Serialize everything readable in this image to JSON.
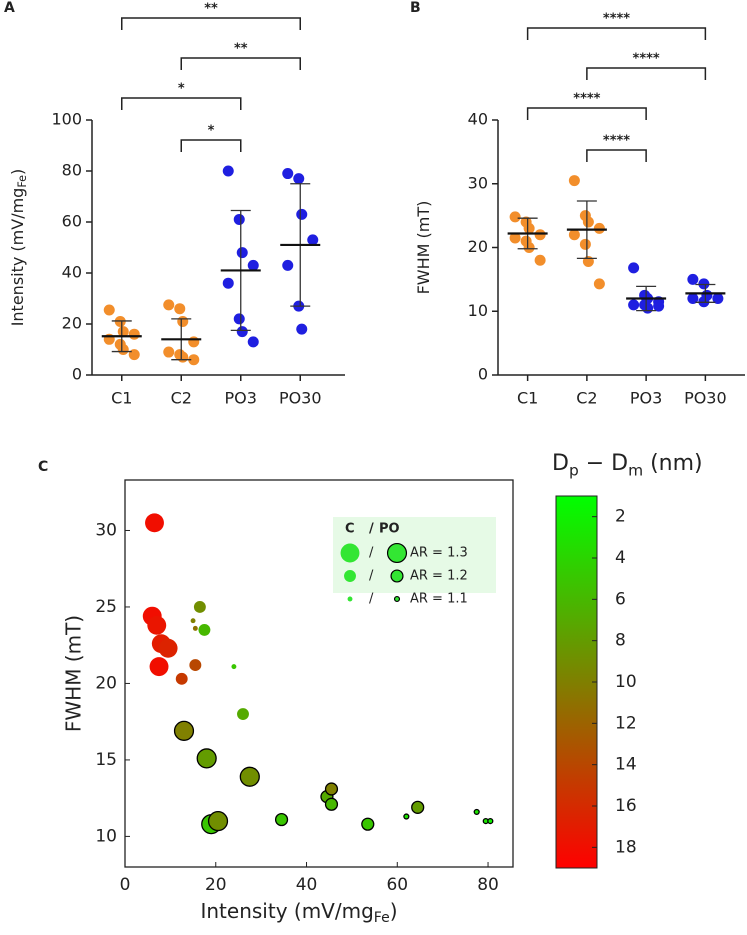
{
  "chart_data": [
    {
      "type": "dot",
      "panel": "A",
      "categories": [
        "C1",
        "C2",
        "PO3",
        "PO30"
      ],
      "colors": [
        "#f28e2b",
        "#f28e2b",
        "#1f1fe0",
        "#1f1fe0"
      ],
      "points": [
        [
          25.5,
          21,
          17,
          16,
          14,
          12,
          10,
          8
        ],
        [
          27.5,
          26,
          21,
          13,
          9,
          8,
          7,
          6
        ],
        [
          80,
          61,
          48,
          43,
          36,
          22,
          17,
          13
        ],
        [
          79,
          77,
          63,
          53,
          43,
          27,
          18
        ]
      ],
      "mean": [
        15.2,
        14,
        41,
        51
      ],
      "sd": [
        6,
        8,
        23.5,
        24
      ],
      "ylabel": [
        "Intensity (mV/mg",
        "Fe",
        ")"
      ],
      "ylim": [
        0,
        100
      ],
      "yticks": [
        0,
        20,
        40,
        60,
        80,
        100
      ],
      "brackets": [
        {
          "from": "C1",
          "to": "PO30",
          "label": "**"
        },
        {
          "from": "C2",
          "to": "PO30",
          "label": "**"
        },
        {
          "from": "C1",
          "to": "PO3",
          "label": "*"
        },
        {
          "from": "C2",
          "to": "PO3",
          "label": "*"
        }
      ]
    },
    {
      "type": "dot",
      "panel": "B",
      "categories": [
        "C1",
        "C2",
        "PO3",
        "PO30"
      ],
      "colors": [
        "#f28e2b",
        "#f28e2b",
        "#1f1fe0",
        "#1f1fe0"
      ],
      "points": [
        [
          24.8,
          24,
          23,
          22,
          21.5,
          21,
          20,
          18
        ],
        [
          30.5,
          25,
          24,
          23,
          22,
          20.5,
          17.8,
          14.3
        ],
        [
          16.8,
          12.5,
          12,
          11.5,
          11,
          11,
          10.5,
          10.8
        ],
        [
          15,
          14.3,
          12.5,
          12,
          12,
          11.5
        ]
      ],
      "mean": [
        22.2,
        22.8,
        12,
        12.8
      ],
      "sd": [
        2.4,
        4.5,
        1.9,
        1.4
      ],
      "ylabel": [
        "FWHM (mT)"
      ],
      "ylim": [
        0,
        40
      ],
      "yticks": [
        0,
        10,
        20,
        30,
        40
      ],
      "brackets": [
        {
          "from": "C1",
          "to": "PO30",
          "label": "****"
        },
        {
          "from": "C2",
          "to": "PO30",
          "label": "****"
        },
        {
          "from": "C1",
          "to": "PO3",
          "label": "****"
        },
        {
          "from": "C2",
          "to": "PO3",
          "label": "****"
        }
      ]
    },
    {
      "type": "bubble",
      "panel": "C",
      "series": [
        {
          "name": "C",
          "x": [
            6.5,
            6,
            7,
            8,
            7.5,
            9.5,
            12.5,
            15.5,
            15,
            15.5,
            16.5,
            17.5,
            24,
            26,
            27.5
          ],
          "values": [
            30.5,
            24.4,
            23.8,
            22.6,
            21.1,
            22.3,
            20.3,
            21.2,
            24.1,
            23.6,
            25,
            23.5,
            21.1,
            18,
            14.3
          ],
          "ar": [
            1.3,
            1.3,
            1.3,
            1.3,
            1.3,
            1.3,
            1.2,
            1.2,
            1.1,
            1.1,
            1.2,
            1.2,
            1.1,
            1.2,
            1.1
          ],
          "dpdm": [
            18,
            18,
            17.5,
            17,
            18,
            16.5,
            15,
            14,
            10,
            11,
            9,
            6,
            5,
            7,
            12
          ]
        },
        {
          "name": "PO",
          "outline": "#000000",
          "x": [
            13,
            18,
            27.5,
            19,
            20.5,
            34.5,
            44.5,
            45.5,
            45.5,
            53.5,
            62,
            64.5,
            77.5,
            79.5,
            80.5
          ],
          "values": [
            16.9,
            15.1,
            13.9,
            10.8,
            11,
            11.1,
            12.6,
            13.1,
            12.1,
            10.8,
            11.3,
            11.9,
            11.6,
            11,
            11
          ],
          "ar": [
            1.3,
            1.3,
            1.3,
            1.3,
            1.3,
            1.2,
            1.2,
            1.2,
            1.2,
            1.2,
            1.1,
            1.2,
            1.1,
            1.1,
            1.1
          ],
          "dpdm": [
            10,
            8,
            9,
            5,
            9,
            5,
            7,
            10,
            6,
            5,
            3,
            8,
            3,
            3,
            2
          ]
        }
      ],
      "legend": {
        "separator": "/",
        "entries": [
          {
            "ar": 1.3,
            "label": "AR = 1.3"
          },
          {
            "ar": 1.2,
            "label": "AR = 1.2"
          },
          {
            "ar": 1.1,
            "label": "AR = 1.1"
          }
        ]
      },
      "xlabel": [
        "Intensity (mV/mg",
        "Fe",
        ")"
      ],
      "ylabel": "FWHM (mT)",
      "xlim": [
        0,
        85.5
      ],
      "xticks": [
        0,
        20,
        40,
        60,
        80
      ],
      "ylim": [
        8,
        33.3
      ],
      "yticks": [
        10,
        15,
        20,
        25,
        30
      ],
      "colorbar_label": [
        "D",
        "p",
        " − ",
        "D",
        "m",
        "  (nm)"
      ],
      "colormap": [
        "#00ff00",
        "#ff0000"
      ],
      "clim": [
        1,
        19
      ],
      "colorbar_ticks": [
        2,
        4,
        6,
        8,
        10,
        12,
        14,
        16,
        18
      ]
    }
  ]
}
